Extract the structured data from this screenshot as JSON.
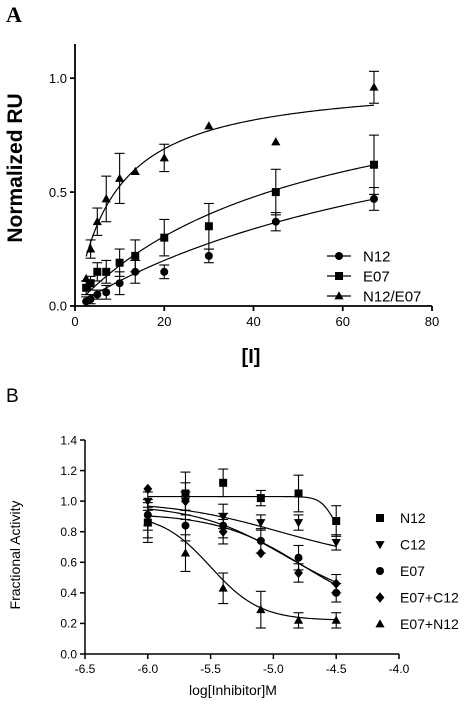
{
  "chart_data": [
    {
      "panel_label": "A",
      "type": "scatter",
      "xlabel": "[I]",
      "ylabel": "Normalized RU",
      "xlim": [
        0,
        80
      ],
      "ylim": [
        0,
        1.15
      ],
      "x_ticks": [
        0,
        20,
        40,
        60,
        80
      ],
      "y_ticks": [
        0.0,
        0.5,
        1.0
      ],
      "x_tick_labels": [
        "0",
        "20",
        "40",
        "60",
        "80"
      ],
      "y_tick_labels": [
        "0.0",
        "0.5",
        "1.0"
      ],
      "legend_position": "lower-right",
      "series": [
        {
          "name": "N12",
          "marker": "circle",
          "x": [
            2.5,
            3.5,
            5,
            7,
            10,
            13.5,
            20,
            30,
            45,
            67
          ],
          "y": [
            0.02,
            0.03,
            0.05,
            0.06,
            0.1,
            0.15,
            0.15,
            0.22,
            0.37,
            0.47
          ],
          "err": [
            0.02,
            0.02,
            0.02,
            0.03,
            0.05,
            0.05,
            0.03,
            0.03,
            0.04,
            0.05
          ],
          "fit": {
            "model": "hyperbolic",
            "bmax": 1.1,
            "kd": 90
          }
        },
        {
          "name": "E07",
          "marker": "square",
          "x": [
            2.5,
            3.5,
            5,
            7,
            10,
            13.5,
            20,
            30,
            45,
            67
          ],
          "y": [
            0.08,
            0.1,
            0.15,
            0.15,
            0.19,
            0.22,
            0.3,
            0.35,
            0.5,
            0.62
          ],
          "err": [
            0.03,
            0.03,
            0.04,
            0.05,
            0.06,
            0.07,
            0.08,
            0.1,
            0.1,
            0.13
          ],
          "fit": {
            "model": "hyperbolic",
            "bmax": 1.1,
            "kd": 52
          }
        },
        {
          "name": "N12/E07",
          "marker": "triangle",
          "x": [
            2.5,
            3.5,
            5,
            7,
            10,
            13.5,
            20,
            30,
            45,
            67
          ],
          "y": [
            0.12,
            0.25,
            0.37,
            0.47,
            0.56,
            0.59,
            0.65,
            0.79,
            0.72,
            0.96
          ],
          "err": [
            0,
            0.04,
            0.06,
            0.1,
            0.11,
            0,
            0.06,
            0,
            0,
            0.07
          ],
          "fit": {
            "model": "hyperbolic",
            "bmax": 1.0,
            "kd": 9
          }
        }
      ]
    },
    {
      "panel_label": "B",
      "type": "scatter",
      "xlabel": "log[Inhibitor]M",
      "ylabel": "Fractional Activity",
      "xlim": [
        -6.5,
        -4.0
      ],
      "ylim": [
        0,
        1.4
      ],
      "x_ticks": [
        -6.5,
        -6.0,
        -5.5,
        -5.0,
        -4.5,
        -4.0
      ],
      "y_ticks": [
        0.0,
        0.2,
        0.4,
        0.6,
        0.8,
        1.0,
        1.2,
        1.4
      ],
      "x_tick_labels": [
        "-6.5",
        "-6.0",
        "-5.5",
        "-5.0",
        "-4.5",
        "-4.0"
      ],
      "y_tick_labels": [
        "0.0",
        "0.2",
        "0.4",
        "0.6",
        "0.8",
        "1.0",
        "1.2",
        "1.4"
      ],
      "legend_position": "right",
      "series": [
        {
          "name": "N12",
          "marker": "square",
          "x": [
            -6.0,
            -5.7,
            -5.4,
            -5.1,
            -4.8,
            -4.5
          ],
          "y": [
            0.86,
            1.05,
            1.12,
            1.02,
            1.05,
            0.87
          ],
          "err": [
            0.1,
            0.14,
            0.09,
            0.05,
            0.12,
            0.1
          ],
          "fit": {
            "top": 1.03,
            "bottom": 0.73,
            "logic50": -4.52,
            "hill": 8
          }
        },
        {
          "name": "C12",
          "marker": "triangle-down",
          "x": [
            -6.0,
            -5.7,
            -5.4,
            -5.1,
            -4.8,
            -4.5
          ],
          "y": [
            1.0,
            1.0,
            0.9,
            0.86,
            0.86,
            0.73
          ],
          "err": [
            0.06,
            0.12,
            0.08,
            0.05,
            0.05,
            0.05
          ],
          "fit": {
            "top": 1.0,
            "bottom": 0.6,
            "logic50": -4.95,
            "hill": 1
          }
        },
        {
          "name": "E07",
          "marker": "circle",
          "x": [
            -6.0,
            -5.7,
            -5.4,
            -5.1,
            -4.8,
            -4.5
          ],
          "y": [
            0.91,
            0.84,
            0.84,
            0.74,
            0.63,
            0.4
          ],
          "err": [
            0.1,
            0.1,
            0.08,
            0.08,
            0.08,
            0.06
          ],
          "fit": {
            "top": 0.92,
            "bottom": 0.25,
            "logic50": -4.78,
            "hill": 1.3
          }
        },
        {
          "name": "E07+C12",
          "marker": "diamond",
          "x": [
            -6.0,
            -5.7,
            -5.4,
            -5.1,
            -4.8,
            -4.5
          ],
          "y": [
            1.08,
            1.0,
            0.8,
            0.66,
            0.53,
            0.46
          ],
          "err": [
            0,
            0.06,
            0.08,
            0,
            0.06,
            0.06
          ],
          "fit": {
            "top": 0.98,
            "bottom": 0.3,
            "logic50": -4.9,
            "hill": 1.2
          }
        },
        {
          "name": "E07+N12",
          "marker": "triangle",
          "x": [
            -6.0,
            -5.7,
            -5.4,
            -5.1,
            -4.8,
            -4.5
          ],
          "y": [
            0.86,
            0.66,
            0.43,
            0.29,
            0.22,
            0.22
          ],
          "err": [
            0.13,
            0.12,
            0.1,
            0.12,
            0.05,
            0.05
          ],
          "fit": {
            "top": 0.92,
            "bottom": 0.22,
            "logic50": -5.5,
            "hill": 2.2
          }
        }
      ]
    }
  ]
}
